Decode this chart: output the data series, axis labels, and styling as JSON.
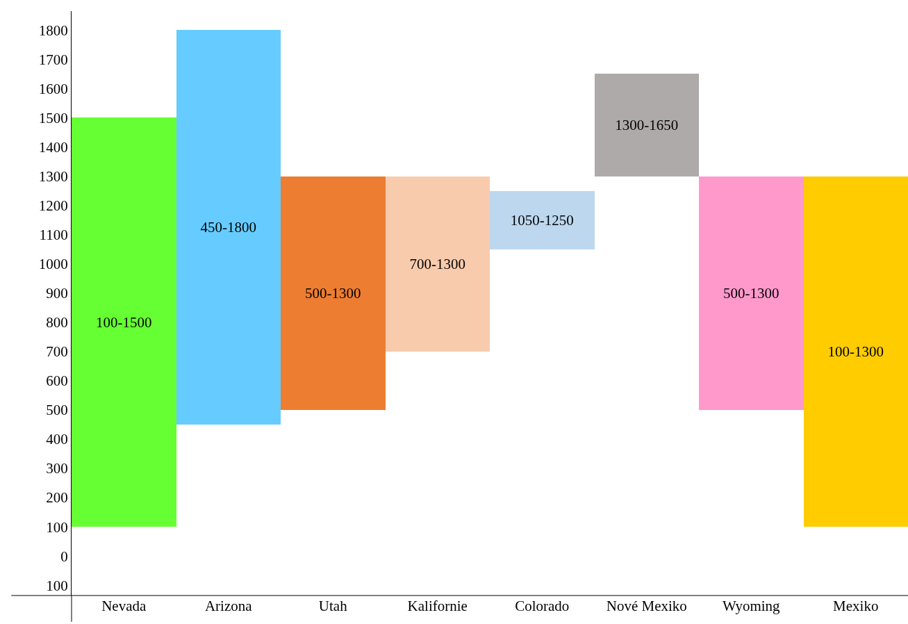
{
  "chart_data": {
    "type": "bar",
    "categories": [
      "Nevada",
      "Arizona",
      "Utah",
      "Kalifornie",
      "Colorado",
      "Nové Mexiko",
      "Wyoming",
      "Mexiko"
    ],
    "base": [
      100,
      450,
      500,
      700,
      1050,
      1300,
      500,
      100
    ],
    "values": [
      1400,
      1350,
      800,
      600,
      200,
      350,
      800,
      1200
    ],
    "colors": [
      "#66ff33",
      "#66ccff",
      "#ed7d31",
      "#f8cbad",
      "#bdd7ee",
      "#aeaaaa",
      "#ff99cc",
      "#ffcc00"
    ],
    "value_labels": [
      "100-1500",
      "450-1800",
      "500-1300",
      "700-1300",
      "1050-1250",
      "1300-1650",
      "500-1300",
      "100-1300"
    ],
    "ylim": [
      -135,
      1865
    ],
    "yticks": [
      {
        "value": -100,
        "label": "100"
      },
      0,
      100,
      200,
      300,
      400,
      500,
      600,
      700,
      800,
      900,
      1000,
      1100,
      1200,
      1300,
      1400,
      1500,
      1600,
      1700,
      1800
    ]
  }
}
